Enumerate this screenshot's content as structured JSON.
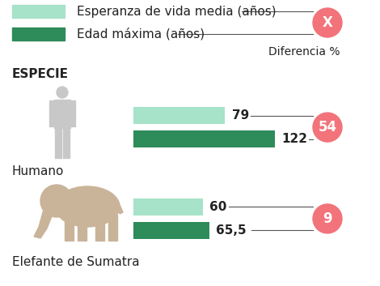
{
  "chart_data": {
    "type": "bar",
    "orientation": "horizontal",
    "title": "ESPECIE",
    "categories": [
      "Humano",
      "Elefante de Sumatra"
    ],
    "series": [
      {
        "name": "Esperanza de vida media (años)",
        "color": "#a6e3c8",
        "values": [
          79,
          60
        ],
        "value_labels": [
          "79",
          "60"
        ]
      },
      {
        "name": "Edad máxima (años)",
        "color": "#2e8b5a",
        "values": [
          122,
          65.5
        ],
        "value_labels": [
          "122",
          "65,5"
        ]
      }
    ],
    "difference": {
      "name": "Diferencia %",
      "symbol": "X",
      "color": "#f2737a",
      "values": [
        54,
        9
      ]
    },
    "xlim": [
      0,
      122
    ],
    "data_labels": true,
    "tick_labels": false
  }
}
